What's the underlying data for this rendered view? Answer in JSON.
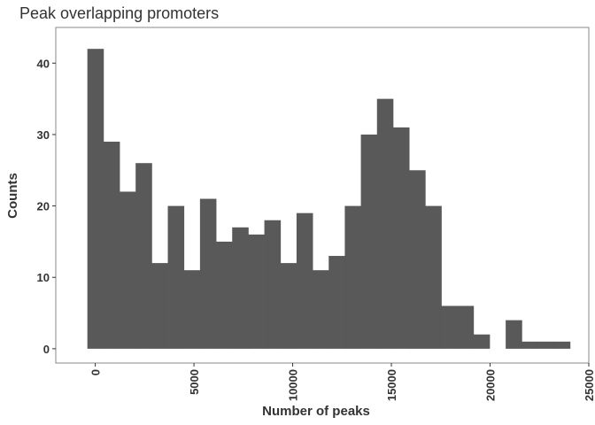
{
  "chart_data": {
    "type": "bar",
    "title": "Peak overlapping promoters",
    "xlabel": "Number of peaks",
    "ylabel": "Counts",
    "xlim": [
      -2000,
      25000
    ],
    "ylim": [
      -2,
      45
    ],
    "x_ticks": [
      "0",
      "5000",
      "10000",
      "15000",
      "20000",
      "25000"
    ],
    "x_tick_values": [
      0,
      5000,
      10000,
      15000,
      20000,
      25000
    ],
    "y_ticks": [
      "0",
      "10",
      "20",
      "30",
      "40"
    ],
    "y_tick_values": [
      0,
      10,
      20,
      30,
      40
    ],
    "bin_width": 815,
    "bin_starts": [
      -400,
      415,
      1230,
      2045,
      2860,
      3675,
      4490,
      5305,
      6120,
      6935,
      7750,
      8565,
      9380,
      10195,
      11010,
      11825,
      12640,
      13455,
      14270,
      15085,
      15900,
      16715,
      17530,
      18345,
      19160,
      19975,
      20790,
      21605,
      22420,
      23235
    ],
    "values": [
      42,
      29,
      22,
      26,
      12,
      20,
      11,
      21,
      15,
      17,
      16,
      18,
      12,
      19,
      11,
      13,
      20,
      30,
      35,
      31,
      25,
      20,
      6,
      6,
      2,
      0,
      4,
      1,
      1,
      1
    ],
    "bar_color": "#595959",
    "grid": false,
    "legend": "none"
  }
}
